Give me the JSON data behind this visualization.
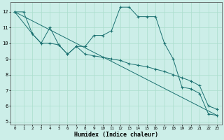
{
  "xlabel": "Humidex (Indice chaleur)",
  "bg_color": "#cceee8",
  "grid_color": "#aaddcc",
  "line_color": "#1a7070",
  "xlim": [
    -0.5,
    23.5
  ],
  "ylim": [
    4.8,
    12.6
  ],
  "yticks": [
    5,
    6,
    7,
    8,
    9,
    10,
    11,
    12
  ],
  "xticks": [
    0,
    1,
    2,
    3,
    4,
    5,
    6,
    7,
    8,
    9,
    10,
    11,
    12,
    13,
    14,
    15,
    16,
    17,
    18,
    19,
    20,
    21,
    22,
    23
  ],
  "series1_x": [
    0,
    1,
    2,
    3,
    4,
    5,
    6,
    7,
    8,
    9,
    10,
    11,
    12,
    13,
    14,
    15,
    16,
    17,
    18,
    19,
    20,
    21,
    22,
    23
  ],
  "series1_y": [
    12.0,
    12.0,
    10.6,
    10.0,
    11.0,
    9.9,
    9.3,
    9.8,
    9.8,
    10.5,
    10.5,
    10.8,
    12.3,
    12.3,
    11.7,
    11.7,
    11.7,
    10.0,
    9.0,
    7.2,
    7.1,
    6.8,
    5.5,
    5.4
  ],
  "series2_x": [
    0,
    2,
    3,
    4,
    5,
    6,
    7,
    8,
    9,
    10,
    11,
    12,
    13,
    14,
    15,
    16,
    17,
    18,
    19,
    20,
    21,
    22,
    23
  ],
  "series2_y": [
    12.0,
    10.6,
    10.0,
    10.0,
    9.9,
    9.3,
    9.8,
    9.3,
    9.2,
    9.1,
    9.0,
    8.9,
    8.7,
    8.6,
    8.5,
    8.35,
    8.2,
    8.0,
    7.8,
    7.6,
    7.3,
    6.0,
    5.8
  ],
  "series3_x": [
    0,
    23
  ],
  "series3_y": [
    12.0,
    5.4
  ]
}
